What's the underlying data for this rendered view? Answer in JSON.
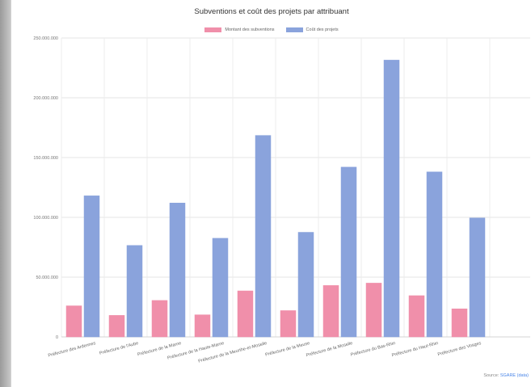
{
  "chart_data": {
    "type": "bar",
    "title": "Subventions et coût des projets par attribuant",
    "categories": [
      "Préfecture des Ardennes",
      "Préfecture de l'Aube",
      "Préfecture de la Marne",
      "Préfecture de la Haute-Marne",
      "Préfecture de la Meurthe-et-Moselle",
      "Préfecture de la Meuse",
      "Préfecture de la Moselle",
      "Préfecture du Bas-Rhin",
      "Préfecture du Haut-Rhin",
      "Préfecture des Vosges"
    ],
    "series": [
      {
        "name": "Montant des subventions",
        "color": "#f08faa",
        "values": [
          26000000,
          18000000,
          30500000,
          18500000,
          38500000,
          22000000,
          43000000,
          45000000,
          34500000,
          23500000
        ]
      },
      {
        "name": "Coût des projets",
        "color": "#8aa3dc",
        "values": [
          118000000,
          76500000,
          112000000,
          82500000,
          168500000,
          87500000,
          142000000,
          231500000,
          138000000,
          99500000
        ]
      }
    ],
    "yticks": [
      "250.000.000",
      "200.000.000",
      "150.000.000",
      "100.000.000",
      "50.000.000",
      "0"
    ],
    "ylim": [
      0,
      250000000
    ],
    "xlabel": "",
    "ylabel": "",
    "grid": true,
    "legend_position": "top-center"
  },
  "source": {
    "prefix": "Source: ",
    "link": "SGARE (data)"
  }
}
